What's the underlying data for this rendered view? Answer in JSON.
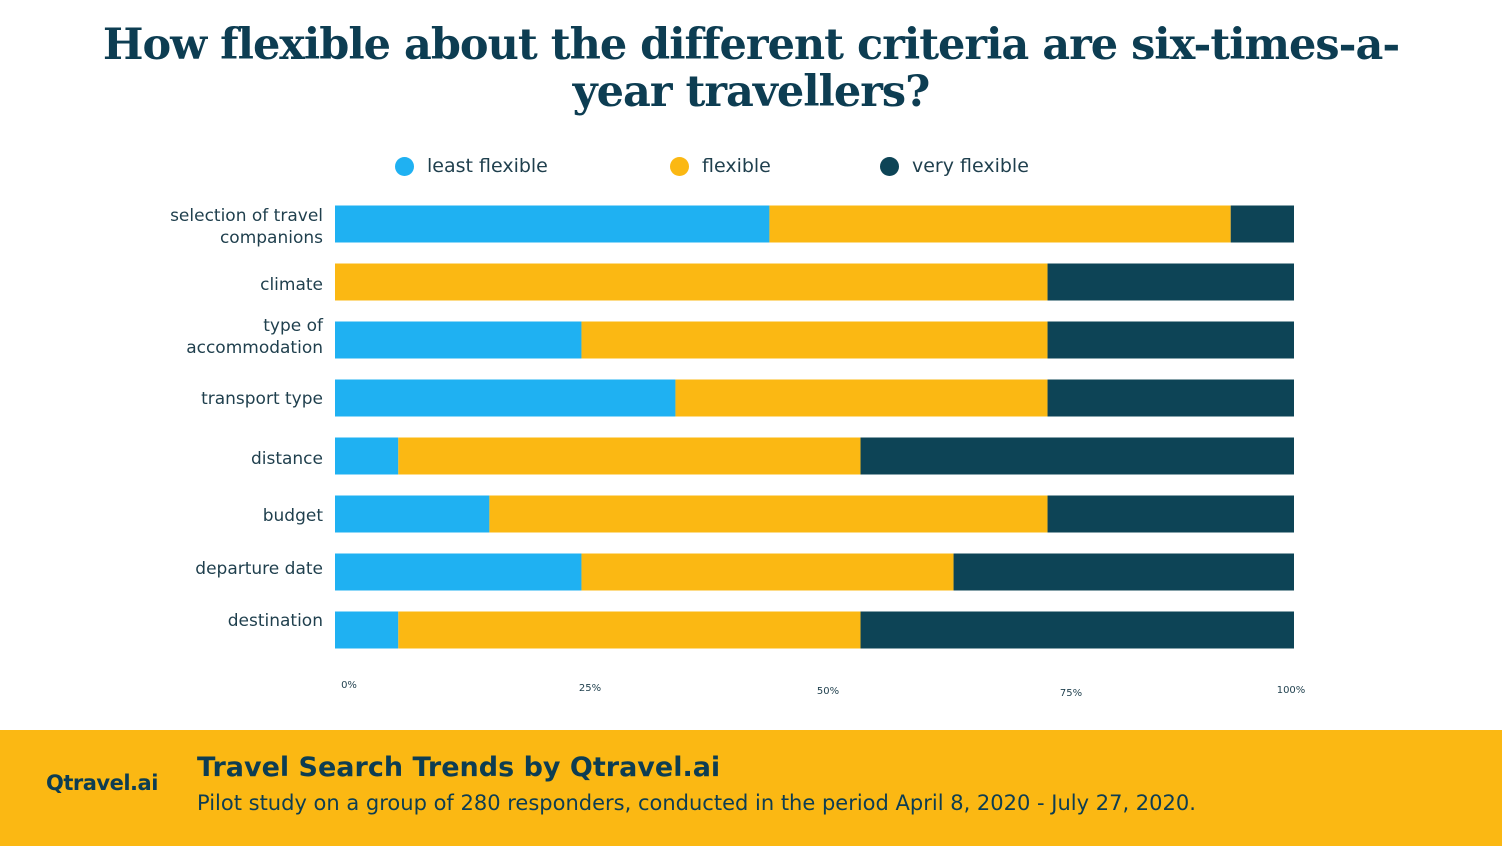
{
  "title": "How flexible about the different criteria are six-times-a-year travellers?",
  "legend": {
    "items": [
      {
        "label": "least flexible",
        "color": "#1fb1f2"
      },
      {
        "label": "flexible",
        "color": "#fbb813"
      },
      {
        "label": "very flexible",
        "color": "#0d4456"
      }
    ]
  },
  "chart_data": {
    "type": "bar",
    "orientation": "horizontal",
    "stacked": true,
    "percent": true,
    "categories": [
      "selection of travel\ncompanions",
      "climate",
      "type of\naccommodation",
      "transport type",
      "distance",
      "budget",
      "departure date",
      "destination"
    ],
    "series": [
      {
        "name": "least flexible",
        "color": "#1fb1f2",
        "values": [
          45.3,
          0,
          25.7,
          35.5,
          6.6,
          16.1,
          25.7,
          6.6
        ]
      },
      {
        "name": "flexible",
        "color": "#fbb813",
        "values": [
          48.1,
          74.3,
          48.6,
          38.8,
          48.2,
          58.2,
          38.8,
          48.2
        ]
      },
      {
        "name": "very flexible",
        "color": "#0d4456",
        "values": [
          6.6,
          25.7,
          25.7,
          25.7,
          45.2,
          25.7,
          35.5,
          45.2
        ]
      }
    ],
    "xlim": [
      0,
      100
    ],
    "xticks": [
      "0%",
      "25%",
      "50%",
      "75%",
      "100%"
    ],
    "grid": false,
    "legend_position": "top"
  },
  "footer": {
    "logo": "Qtravel.ai",
    "heading": "Travel Search Trends by Qtravel.ai",
    "subtitle": "Pilot study on a group of 280 responders, conducted in the period April 8, 2020 - July 27, 2020."
  }
}
